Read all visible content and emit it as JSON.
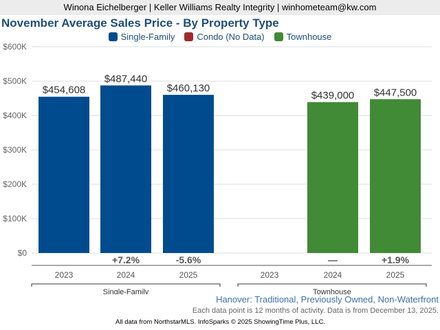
{
  "header": {
    "agent_line": "Winona Eichelberger | Keller Williams Realty Integrity | winhometeam@kw.com"
  },
  "chart_data": {
    "type": "bar",
    "title": "November Average Sales Price - By Property Type",
    "xlabel": "",
    "ylabel": "",
    "ylim": [
      0,
      600000
    ],
    "yticks": [
      0,
      100000,
      200000,
      300000,
      400000,
      500000,
      600000
    ],
    "ytick_labels": [
      "$0",
      "$100K",
      "$200K",
      "$300K",
      "$400K",
      "$500K",
      "$600K"
    ],
    "grid": true,
    "legend_position": "top-center",
    "legend": [
      {
        "name": "Single-Family",
        "color": "#004b8d"
      },
      {
        "name": "Condo (No Data)",
        "color": "#9e2a2b"
      },
      {
        "name": "Townhouse",
        "color": "#418a36"
      }
    ],
    "groups": [
      {
        "name": "Single-Family",
        "color": "#004b8d",
        "categories": [
          "2023",
          "2024",
          "2025"
        ],
        "values": [
          454608,
          487440,
          460130
        ],
        "value_labels": [
          "$454,608",
          "$487,440",
          "$460,130"
        ],
        "pct_change": [
          "",
          "+7.2%",
          "-5.6%"
        ]
      },
      {
        "name": "Townhouse",
        "color": "#418a36",
        "categories": [
          "2023",
          "2024",
          "2025"
        ],
        "values": [
          null,
          439000,
          447500
        ],
        "value_labels": [
          "",
          "$439,000",
          "$447,500"
        ],
        "pct_change": [
          "",
          "—",
          "+1.9%"
        ]
      }
    ]
  },
  "subtitle": "Hanover: Traditional, Previously Owned, Non-Waterfront",
  "note": "Each data point is 12 months of activity. Data is from December 13, 2025.",
  "footer": "All data from NorthstarMLS. InfoSparks © 2025 ShowingTime Plus, LLC."
}
